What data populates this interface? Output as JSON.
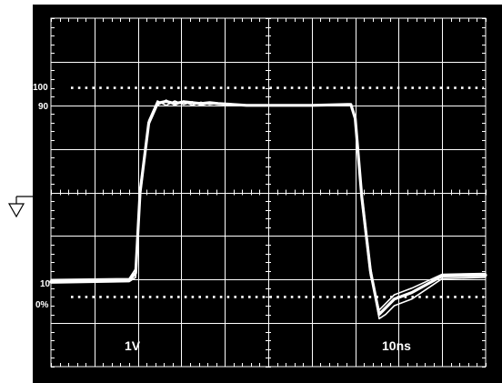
{
  "chart_data": {
    "type": "line",
    "title": "",
    "xlabel": "",
    "ylabel": "",
    "grid": true,
    "background_color": "#000000",
    "trace_color": "#ffffff",
    "x_divisions": 10,
    "y_divisions": 8,
    "xlim": [
      0,
      10
    ],
    "ylim": [
      -4,
      4
    ],
    "scale_labels": {
      "volts_per_div": "1V",
      "time_per_div": "10ns"
    },
    "level_labels": {
      "top": "100",
      "upper": "90",
      "lower": "10",
      "bottom": "0%"
    },
    "reference_levels": [
      {
        "label": "100",
        "y": 2.4
      },
      {
        "label": "0%",
        "y": -2.4
      }
    ],
    "series": [
      {
        "x": [
          0,
          1.8,
          1.95,
          2.05,
          2.25,
          2.45,
          2.65,
          2.85,
          3.05,
          3.25,
          3.45,
          3.65,
          3.85,
          4.5,
          6.0,
          6.9,
          7.0,
          7.15,
          7.35,
          7.55,
          7.7,
          7.9,
          8.3,
          9.0,
          10
        ],
        "y": [
          -2.05,
          -2.02,
          -1.85,
          0,
          1.6,
          2.05,
          2.09,
          2.04,
          2.08,
          2.06,
          2.04,
          2.06,
          2.04,
          2.0,
          2.0,
          2.02,
          1.7,
          -0.1,
          -1.8,
          -2.8,
          -2.65,
          -2.45,
          -2.3,
          -1.92,
          -1.9
        ]
      },
      {
        "x": [
          0,
          1.8,
          1.95,
          2.05,
          2.25,
          2.45,
          2.65,
          2.85,
          3.05,
          3.25,
          3.45,
          3.65,
          3.85,
          4.5,
          6.0,
          6.9,
          7.0,
          7.15,
          7.35,
          7.55,
          7.7,
          7.9,
          8.3,
          9.0,
          10
        ],
        "y": [
          -2.0,
          -1.98,
          -1.75,
          0.1,
          1.65,
          2.1,
          2.0,
          2.1,
          2.02,
          2.08,
          2.0,
          2.05,
          2.02,
          2.0,
          2.0,
          2.01,
          1.65,
          -0.2,
          -1.9,
          -2.7,
          -2.55,
          -2.35,
          -2.2,
          -1.88,
          -1.86
        ]
      },
      {
        "x": [
          0,
          1.8,
          1.95,
          2.05,
          2.25,
          2.45,
          2.65,
          2.85,
          3.05,
          3.25,
          3.45,
          3.65,
          3.85,
          4.5,
          6.0,
          6.9,
          7.0,
          7.15,
          7.35,
          7.55,
          7.7,
          7.9,
          8.3,
          9.0,
          10
        ],
        "y": [
          -2.08,
          -2.05,
          -1.95,
          -0.1,
          1.55,
          2.0,
          2.12,
          2.0,
          2.1,
          2.0,
          2.07,
          2.02,
          2.05,
          2.0,
          2.0,
          2.0,
          1.75,
          0.0,
          -1.7,
          -2.9,
          -2.8,
          -2.6,
          -2.45,
          -1.98,
          -1.95
        ]
      }
    ]
  }
}
